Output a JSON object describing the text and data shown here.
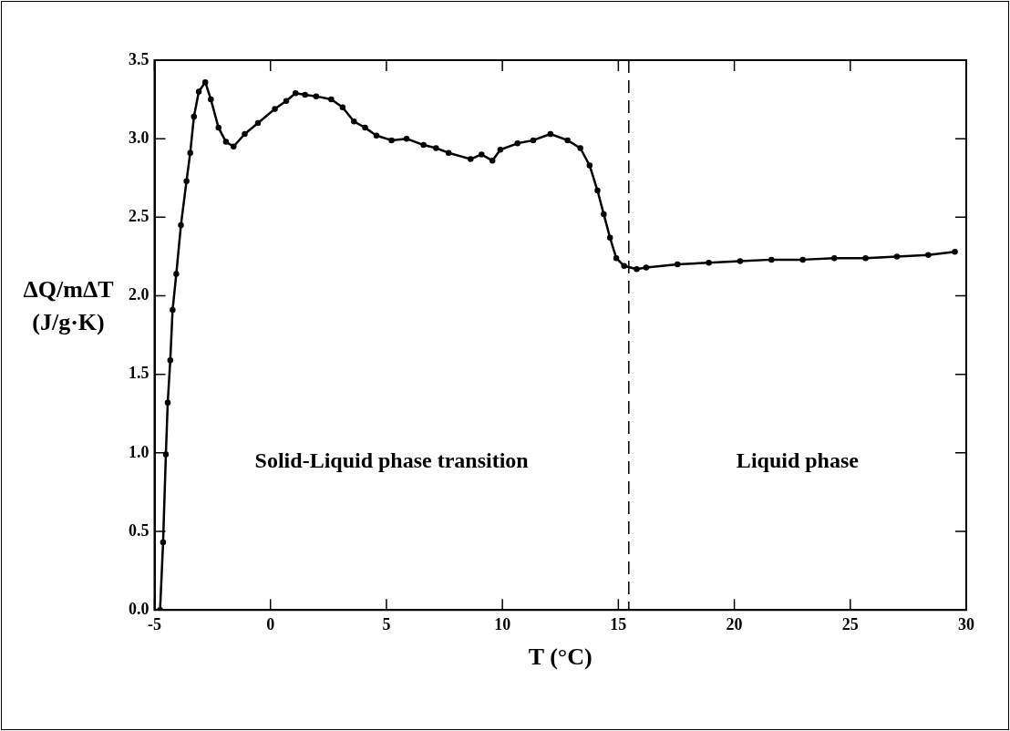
{
  "chart_data": {
    "type": "line",
    "xlabel": "T (°C)",
    "ylabel": "ΔQ/mΔT (J/g·K)",
    "series": [
      {
        "color": "#000000",
        "x": [
          -4.76,
          -4.63,
          -4.51,
          -4.43,
          -4.32,
          -4.22,
          -4.06,
          -3.86,
          -3.62,
          -3.46,
          -3.3,
          -3.09,
          -2.81,
          -2.57,
          -2.24,
          -1.92,
          -1.59,
          -1.11,
          -0.54,
          0.19,
          0.68,
          1.08,
          1.49,
          1.97,
          2.62,
          3.11,
          3.6,
          4.08,
          4.57,
          5.22,
          5.87,
          6.6,
          7.14,
          7.68,
          8.63,
          9.1,
          9.57,
          9.91,
          10.65,
          11.33,
          12.07,
          12.81,
          13.36,
          13.76,
          14.1,
          14.37,
          14.64,
          14.91,
          15.25,
          15.79,
          16.2,
          17.55,
          18.9,
          20.25,
          21.6,
          22.95,
          24.31,
          25.66,
          27.01,
          28.36,
          29.51
        ],
        "values": [
          0,
          0.43,
          0.99,
          1.32,
          1.59,
          1.91,
          2.14,
          2.45,
          2.73,
          2.91,
          3.14,
          3.3,
          3.36,
          3.25,
          3.07,
          2.98,
          2.95,
          3.03,
          3.1,
          3.19,
          3.24,
          3.29,
          3.28,
          3.27,
          3.25,
          3.2,
          3.11,
          3.07,
          3.02,
          2.99,
          3.0,
          2.96,
          2.94,
          2.91,
          2.87,
          2.9,
          2.86,
          2.93,
          2.97,
          2.99,
          3.03,
          2.99,
          2.94,
          2.83,
          2.67,
          2.52,
          2.37,
          2.24,
          2.19,
          2.17,
          2.18,
          2.2,
          2.21,
          2.22,
          2.23,
          2.23,
          2.24,
          2.24,
          2.25,
          2.26,
          2.28
        ]
      }
    ],
    "xlim": [
      -5,
      30
    ],
    "xticks": [
      -5,
      0,
      5,
      10,
      15,
      20,
      25,
      30
    ],
    "ylim": [
      0,
      3.5
    ],
    "yticks": [
      {
        "value": 0,
        "label": "0.0"
      },
      {
        "value": 0.5,
        "label": "0.5"
      },
      {
        "value": 1,
        "label": "1.0"
      },
      {
        "value": 1.5,
        "label": "1.5"
      },
      {
        "value": 2,
        "label": "2.0"
      },
      {
        "value": 2.5,
        "label": "2.5"
      },
      {
        "value": 3,
        "label": "3.0"
      },
      {
        "value": 3.5,
        "label": "3.5"
      }
    ],
    "ref_lines": [
      {
        "axis": "x",
        "value": 15.45,
        "color": "#000000",
        "line_style": "dashed"
      }
    ],
    "annotations": [
      "Solid-Liquid phase transition",
      "Liquid phase"
    ],
    "marker": "circle",
    "line_style": "solid",
    "grid": false,
    "legend": false
  }
}
